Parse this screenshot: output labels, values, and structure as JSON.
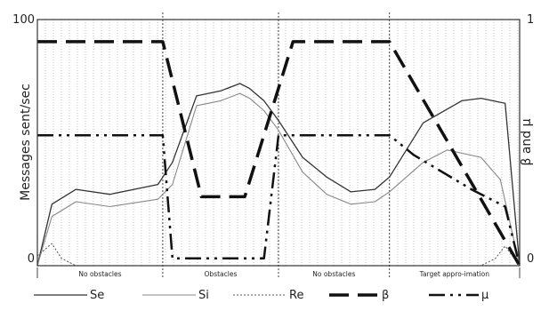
{
  "chart_data": {
    "type": "line",
    "title": "",
    "ylabel_left": "Messages sent/sec",
    "ylabel_right": "β and μ",
    "left_ticks": [
      {
        "value": 0,
        "label": "0"
      },
      {
        "value": 100,
        "label": "100"
      }
    ],
    "right_ticks": [
      {
        "value": 0,
        "label": "0"
      },
      {
        "value": 1,
        "label": "1"
      }
    ],
    "ylim_left": [
      0,
      100
    ],
    "ylim_right": [
      0,
      1
    ],
    "xlim": [
      0,
      100
    ],
    "grid": "vertical-dotted",
    "legend_position": "bottom",
    "phases": [
      {
        "label": "No obstacles",
        "start": 0,
        "end": 26
      },
      {
        "label": "Obstacles",
        "start": 26,
        "end": 50
      },
      {
        "label": "No obstacles",
        "start": 50,
        "end": 73
      },
      {
        "label": "Target appro-imation",
        "start": 73,
        "end": 100
      }
    ],
    "series": [
      {
        "name": "Se",
        "axis": "left",
        "color": "#333333",
        "dash": "",
        "width": 1.3,
        "x": [
          0,
          3,
          8,
          15,
          25,
          28,
          33,
          38,
          42,
          44,
          47,
          50,
          55,
          60,
          65,
          70,
          73,
          80,
          88,
          92,
          97,
          100
        ],
        "y": [
          0,
          25,
          31,
          29,
          33,
          42,
          69,
          71,
          74,
          72,
          67,
          59,
          44,
          36,
          30,
          31,
          36,
          58,
          67,
          68,
          66,
          0
        ]
      },
      {
        "name": "Si",
        "axis": "left",
        "color": "#888888",
        "dash": "",
        "width": 1.1,
        "x": [
          0,
          3,
          8,
          15,
          25,
          28,
          33,
          38,
          42,
          44,
          47,
          50,
          55,
          60,
          65,
          70,
          73,
          80,
          85,
          92,
          96,
          100
        ],
        "y": [
          0,
          20,
          26,
          24,
          27,
          33,
          65,
          67,
          70,
          68,
          63,
          55,
          38,
          29,
          25,
          26,
          30,
          42,
          47,
          44,
          35,
          0
        ]
      },
      {
        "name": "Re",
        "axis": "left",
        "color": "#555555",
        "dash": "2,2",
        "width": 1,
        "x": [
          0,
          3,
          5,
          8,
          92,
          95,
          97,
          100
        ],
        "y": [
          4,
          9,
          3,
          0,
          0,
          3,
          8,
          0
        ]
      },
      {
        "name": "β",
        "axis": "right",
        "color": "#111111",
        "dash": "22,10",
        "width": 3.5,
        "x": [
          0,
          26,
          34,
          43,
          53,
          73,
          100
        ],
        "y": [
          0.91,
          0.91,
          0.28,
          0.28,
          0.91,
          0.91,
          0.0
        ]
      },
      {
        "name": "μ",
        "axis": "right",
        "color": "#111111",
        "dash": "18,6,3,6,3,6",
        "width": 2.5,
        "x": [
          0,
          26,
          28,
          40,
          47,
          50,
          73,
          78,
          90,
          97,
          100
        ],
        "y": [
          0.53,
          0.53,
          0.03,
          0.03,
          0.03,
          0.53,
          0.53,
          0.45,
          0.31,
          0.24,
          0.0
        ]
      }
    ]
  }
}
